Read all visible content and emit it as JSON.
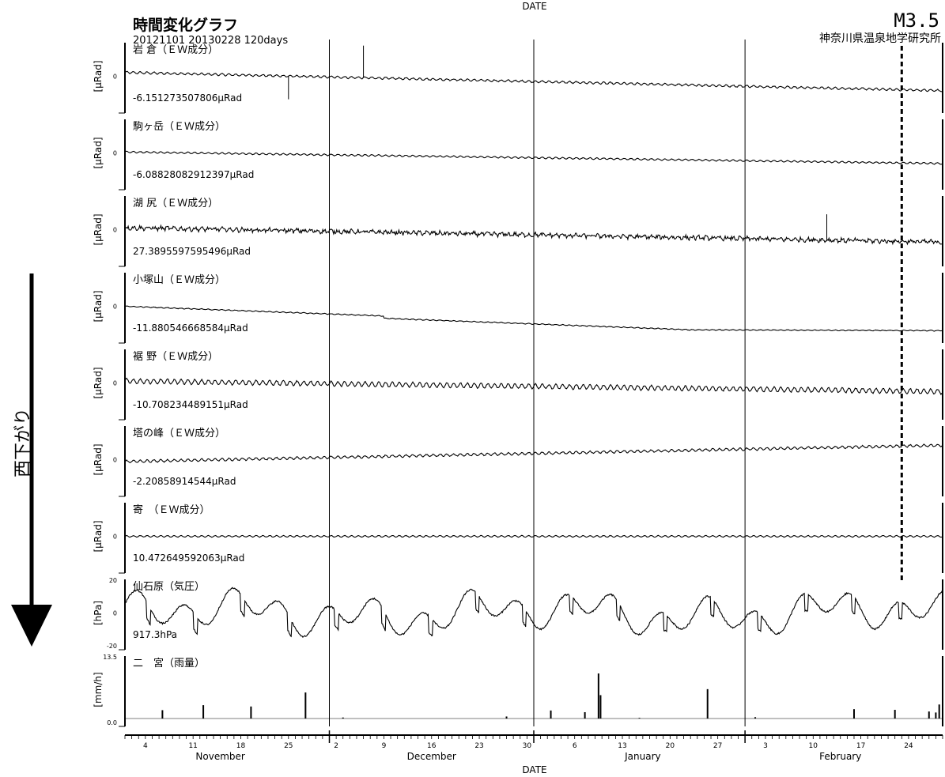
{
  "header": {
    "title": "時間変化グラフ",
    "period": "20121101   20130228 120days",
    "magnitude": "M3.5",
    "institute": "神奈川県温泉地学研究所",
    "top_axis_label": "DATE",
    "bottom_axis_label": "DATE",
    "side_label": "西下がり"
  },
  "chart_data": {
    "type": "line",
    "x_axis": {
      "start": "2012-11-01",
      "end": "2013-02-28",
      "days": 120,
      "day_ticks": [
        {
          "label": "4",
          "date": "2012-11-04"
        },
        {
          "label": "11",
          "date": "2012-11-11"
        },
        {
          "label": "18",
          "date": "2012-11-18"
        },
        {
          "label": "25",
          "date": "2012-11-25"
        },
        {
          "label": "2",
          "date": "2012-12-02"
        },
        {
          "label": "9",
          "date": "2012-12-09"
        },
        {
          "label": "16",
          "date": "2012-12-16"
        },
        {
          "label": "23",
          "date": "2012-12-23"
        },
        {
          "label": "30",
          "date": "2012-12-30"
        },
        {
          "label": "6",
          "date": "2013-01-06"
        },
        {
          "label": "13",
          "date": "2013-01-13"
        },
        {
          "label": "20",
          "date": "2013-01-20"
        },
        {
          "label": "27",
          "date": "2013-01-27"
        },
        {
          "label": "3",
          "date": "2013-02-03"
        },
        {
          "label": "10",
          "date": "2013-02-10"
        },
        {
          "label": "17",
          "date": "2013-02-17"
        },
        {
          "label": "24",
          "date": "2013-02-24"
        }
      ],
      "months": [
        {
          "label": "November",
          "mid": "2012-11-15"
        },
        {
          "label": "December",
          "mid": "2012-12-16"
        },
        {
          "label": "January",
          "mid": "2013-01-16"
        },
        {
          "label": "February",
          "mid": "2013-02-14"
        }
      ],
      "month_boundaries": [
        "2012-12-01",
        "2012-12-31",
        "2013-01-31"
      ],
      "event_marker": "2013-02-23"
    },
    "panels": [
      {
        "title": "岩 倉（ＥＷ成分）",
        "unit": "[μRad]",
        "base": "-6.151273507806μRad",
        "ytick": "0",
        "start": 0.2,
        "end": -0.75,
        "amp": 0.05,
        "noise": 0.02,
        "spikes": [
          {
            "day": 24,
            "v": -0.75
          },
          {
            "day": 35,
            "v": 1.0
          }
        ]
      },
      {
        "title": "駒ヶ岳（ＥＷ成分）",
        "unit": "[μRad]",
        "base": "-6.08828082912397μRad",
        "ytick": "0",
        "start": 0.05,
        "end": -0.55,
        "amp": 0.04,
        "noise": 0.01,
        "spikes": []
      },
      {
        "title": "湖 尻（ＥＷ成分）",
        "unit": "[μRad]",
        "base": "27.3895597595496μRad",
        "ytick": "0",
        "start": 0.1,
        "end": -0.65,
        "amp": 0.06,
        "noise": 0.09,
        "spikes": [
          {
            "day": 103,
            "v": 0.5
          }
        ]
      },
      {
        "title": "小塚山（ＥＷ成分）",
        "unit": "[μRad]",
        "base": "-11.8805466685​84μRad",
        "ytick": "0",
        "start": 0.0,
        "end": -1.6,
        "amp": 0.02,
        "noise": 0.01,
        "spikes": []
      },
      {
        "title": "裾 野（ＥＷ成分）",
        "unit": "[μRad]",
        "base": "-10.708234489151μRad",
        "ytick": "0",
        "start": 0.1,
        "end": -0.45,
        "amp": 0.12,
        "noise": 0.03,
        "spikes": []
      },
      {
        "title": "塔の峰（ＥＷ成分）",
        "unit": "[μRad]",
        "base": "-2.20858914544μRad",
        "ytick": "0",
        "start": -0.1,
        "end": 0.75,
        "amp": 0.06,
        "noise": 0.02,
        "spikes": []
      },
      {
        "title": "寄　（ＥＷ成分）",
        "unit": "[μRad]",
        "base": "10.472649592063μRad",
        "ytick": "0",
        "start": 0.0,
        "end": 0.0,
        "amp": 0.04,
        "noise": 0.01,
        "spikes": []
      },
      {
        "title": "仙石原（気圧）",
        "unit": "[hPa]",
        "base": "917.3hPa",
        "ytick_top": "20",
        "ytick": "0",
        "ytick_bottom": "-20",
        "pressure": true
      },
      {
        "title": "二　宮（雨量）",
        "unit": "[mm/h]",
        "ytick_top": "13.5",
        "ytick_bottom": "0.0",
        "rain": [
          {
            "day": 5.5,
            "v": 2.5
          },
          {
            "day": 11.5,
            "v": 4.0
          },
          {
            "day": 18.5,
            "v": 3.6
          },
          {
            "day": 26.5,
            "v": 7.8
          },
          {
            "day": 32,
            "v": 0.3
          },
          {
            "day": 56,
            "v": 0.6
          },
          {
            "day": 62.5,
            "v": 2.4
          },
          {
            "day": 67.5,
            "v": 1.9
          },
          {
            "day": 69.5,
            "v": 13.5
          },
          {
            "day": 69.8,
            "v": 7.0
          },
          {
            "day": 75.5,
            "v": 0.2
          },
          {
            "day": 85.5,
            "v": 8.8
          },
          {
            "day": 92.5,
            "v": 0.4
          },
          {
            "day": 107,
            "v": 2.8
          },
          {
            "day": 113,
            "v": 2.6
          },
          {
            "day": 118,
            "v": 2.1
          },
          {
            "day": 119,
            "v": 1.8
          },
          {
            "day": 119.5,
            "v": 4.2
          },
          {
            "day": 121,
            "v": 1.3
          },
          {
            "day": 126,
            "v": 2.6
          }
        ]
      }
    ]
  }
}
